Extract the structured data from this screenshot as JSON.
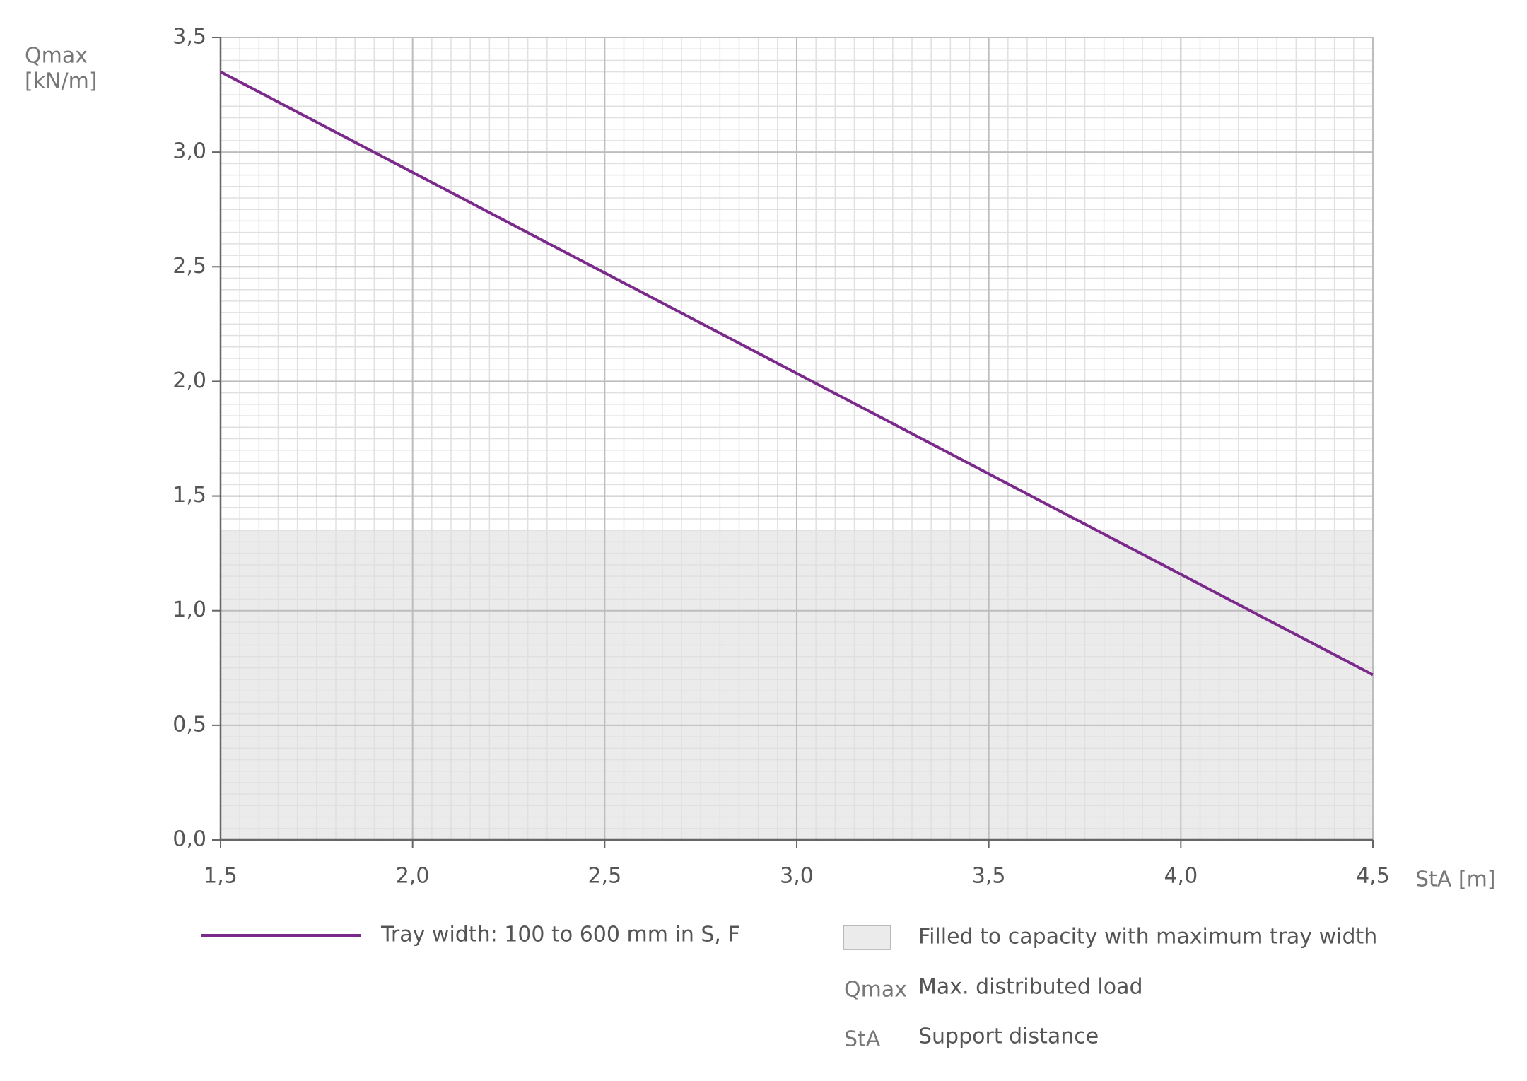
{
  "chart_data": {
    "type": "line",
    "ylabel": [
      "Qmax",
      "[kN/m]"
    ],
    "xlabel": "StA [m]",
    "x": [
      1.5,
      4.5
    ],
    "series": [
      {
        "name": "Tray width: 100 to 600 mm in S, F",
        "color": "#7b2a8c",
        "values": [
          3.35,
          0.72
        ]
      }
    ],
    "shaded_area": {
      "name": "Filled to capacity with maximum tray width",
      "color": "#ebebeb",
      "y_max": 1.35
    },
    "definitions": [
      {
        "term": "Qmax",
        "meaning": "Max. distributed load"
      },
      {
        "term": "StA",
        "meaning": "Support distance"
      }
    ],
    "xlim": [
      1.5,
      4.5
    ],
    "xticks": [
      {
        "value": 1.5,
        "label": "1,5"
      },
      {
        "value": 2,
        "label": "2,0"
      },
      {
        "value": 2.5,
        "label": "2,5"
      },
      {
        "value": 3,
        "label": "3,0"
      },
      {
        "value": 3.5,
        "label": "3,5"
      },
      {
        "value": 4,
        "label": "4,0"
      },
      {
        "value": 4.5,
        "label": "4,5"
      }
    ],
    "ylim": [
      0,
      3.5
    ],
    "yticks": [
      {
        "value": 0,
        "label": "0,0"
      },
      {
        "value": 0.5,
        "label": "0,5"
      },
      {
        "value": 1,
        "label": "1,0"
      },
      {
        "value": 1.5,
        "label": "1,5"
      },
      {
        "value": 2,
        "label": "2,0"
      },
      {
        "value": 2.5,
        "label": "2,5"
      },
      {
        "value": 3,
        "label": "3,0"
      },
      {
        "value": 3.5,
        "label": "3,5"
      }
    ],
    "grid": true
  }
}
